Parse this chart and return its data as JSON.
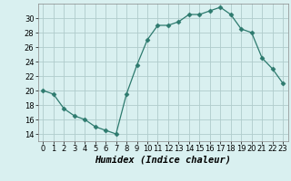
{
  "x": [
    0,
    1,
    2,
    3,
    4,
    5,
    6,
    7,
    8,
    9,
    10,
    11,
    12,
    13,
    14,
    15,
    16,
    17,
    18,
    19,
    20,
    21,
    22,
    23
  ],
  "y": [
    20,
    19.5,
    17.5,
    16.5,
    16,
    15,
    14.5,
    14,
    19.5,
    23.5,
    27,
    29,
    29,
    29.5,
    30.5,
    30.5,
    31,
    31.5,
    30.5,
    28.5,
    28,
    24.5,
    23,
    21
  ],
  "line_color": "#2d7a6e",
  "marker": "D",
  "marker_size": 2.5,
  "bg_color": "#d9f0f0",
  "grid_color": "#b0cccc",
  "xlabel": "Humidex (Indice chaleur)",
  "ylim": [
    13,
    32
  ],
  "xlim": [
    -0.5,
    23.5
  ],
  "yticks": [
    14,
    16,
    18,
    20,
    22,
    24,
    26,
    28,
    30
  ],
  "xticks": [
    0,
    1,
    2,
    3,
    4,
    5,
    6,
    7,
    8,
    9,
    10,
    11,
    12,
    13,
    14,
    15,
    16,
    17,
    18,
    19,
    20,
    21,
    22,
    23
  ],
  "tick_fontsize": 6,
  "label_fontsize": 7.5
}
